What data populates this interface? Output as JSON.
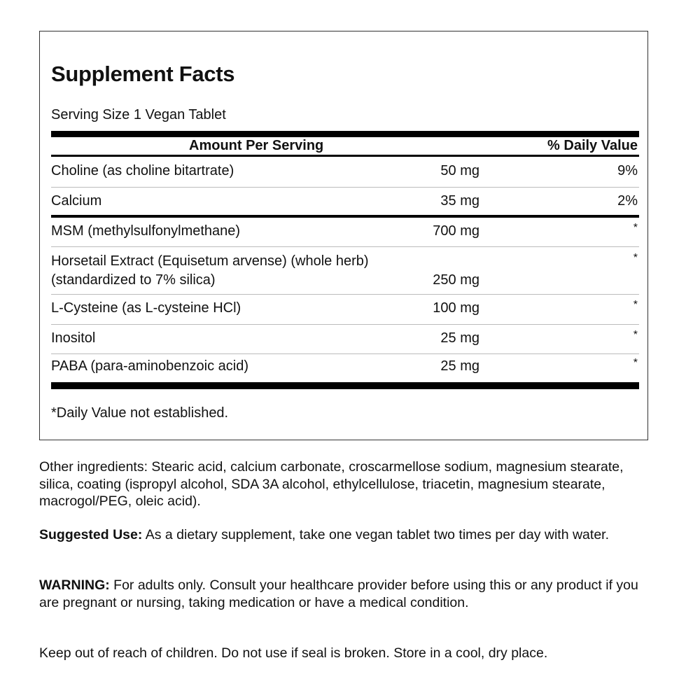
{
  "facts": {
    "title": "Supplement Facts",
    "serving_size": "Serving Size 1 Vegan Tablet",
    "header_amount": "Amount Per Serving",
    "header_dv": "% Daily Value",
    "rows": [
      {
        "name": "Choline (as choline bitartrate)",
        "amount": "50 mg",
        "dv": "9%"
      },
      {
        "name": "Calcium",
        "amount": "35 mg",
        "dv": "2%"
      },
      {
        "name": "MSM (methylsulfonylmethane)",
        "amount": "700 mg",
        "dv": "*"
      },
      {
        "name": "Horsetail Extract (Equisetum arvense) (whole herb)",
        "name2": "(standardized to 7% silica)",
        "amount": "250 mg",
        "dv": "*"
      },
      {
        "name": "L-Cysteine (as L-cysteine HCl)",
        "amount": "100 mg",
        "dv": "*"
      },
      {
        "name": "Inositol",
        "amount": "25 mg",
        "dv": "*"
      },
      {
        "name": "PABA (para-aminobenzoic acid)",
        "amount": "25 mg",
        "dv": "*"
      }
    ],
    "footnote": "*Daily Value not established."
  },
  "other_ingredients": "Other ingredients: Stearic acid, calcium carbonate, croscarmellose sodium, magnesium stearate, silica, coating (ispropyl alcohol, SDA 3A alcohol, ethylcellulose, triacetin, magnesium stearate, macrogol/PEG, oleic acid).",
  "suggested_use": {
    "label": "Suggested Use:",
    "text": " As a dietary supplement, take one vegan tablet two times per day with water."
  },
  "warning": {
    "label": "WARNING:",
    "text": " For adults only. Consult your healthcare provider before using this or any product if you are pregnant or nursing, taking medication or have a medical condition."
  },
  "storage": "Keep out of reach of children. Do not use if seal is broken. Store in a cool, dry place."
}
